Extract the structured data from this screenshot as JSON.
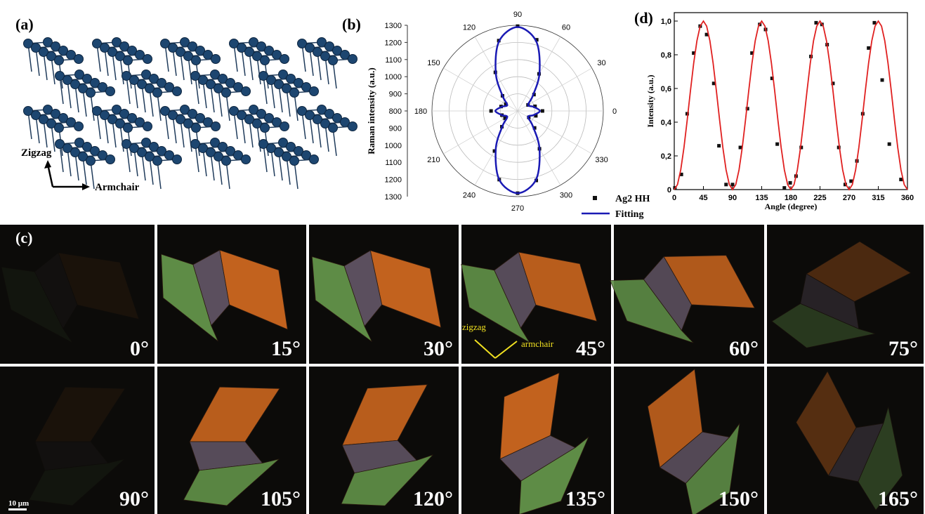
{
  "panel_a": {
    "label": "(a)",
    "zigzag": "Zigzag",
    "armchair": "Armchair"
  },
  "panel_c": {
    "label": "(c)",
    "angles": [
      "0°",
      "15°",
      "30°",
      "45°",
      "60°",
      "75°",
      "90°",
      "105°",
      "120°",
      "135°",
      "150°",
      "165°"
    ],
    "zigzag": "zigzag",
    "armchair": "armchair",
    "scale_bar": "10 μm"
  },
  "chart_data": [
    {
      "type": "polar",
      "panel_label": "(b)",
      "y_label": "Raman intensity (a.u.)",
      "theta": [
        0,
        15,
        30,
        45,
        60,
        75,
        90,
        105,
        120,
        135,
        150,
        165,
        180,
        195,
        210,
        225,
        240,
        255,
        270,
        285,
        300,
        315,
        330,
        345
      ],
      "rlim": [
        800,
        1300
      ],
      "rticks": [
        800,
        900,
        1000,
        1100,
        1200,
        1300
      ],
      "angle_ticks": [
        0,
        30,
        60,
        90,
        120,
        150,
        180,
        210,
        240,
        270,
        300,
        330
      ],
      "series": [
        {
          "name": "Ag2 HH",
          "color": "#111111",
          "mode": "points",
          "values": [
            945,
            905,
            870,
            935,
            1050,
            1230,
            1295,
            1225,
            1060,
            925,
            880,
            900,
            955,
            895,
            885,
            930,
            1070,
            1215,
            1280,
            1220,
            1055,
            940,
            875,
            910
          ]
        },
        {
          "name": "Fitting",
          "color": "#1a1ab4",
          "mode": "curve",
          "values": [
            930,
            895,
            870,
            925,
            1055,
            1220,
            1290,
            1220,
            1055,
            925,
            870,
            895,
            930,
            895,
            870,
            925,
            1055,
            1215,
            1280,
            1215,
            1055,
            925,
            870,
            895
          ]
        }
      ]
    },
    {
      "type": "line",
      "panel_label": "(d)",
      "x_label": "Angle (degree)",
      "y_label": "Intensity (a.u.)",
      "xlim": [
        0,
        360
      ],
      "xticks": [
        0,
        45,
        90,
        135,
        180,
        225,
        270,
        315,
        360
      ],
      "ylim": [
        0,
        1.05
      ],
      "yticks": [
        0,
        {
          "value": 0.2,
          "label": "0,2"
        },
        {
          "value": 0.4,
          "label": "0,4"
        },
        {
          "value": 0.6,
          "label": "0,6"
        },
        {
          "value": 0.8,
          "label": "0,8"
        },
        {
          "value": 1.0,
          "label": "1,0"
        }
      ],
      "series": [
        {
          "mode": "points",
          "color": "#111111",
          "x": [
            1,
            11,
            20,
            30,
            40,
            50,
            61,
            69,
            80,
            90,
            102,
            113,
            120,
            132,
            141,
            151,
            159,
            170,
            179,
            188,
            196,
            211,
            219,
            228,
            236,
            245,
            254,
            264,
            273,
            282,
            291,
            300,
            309,
            321,
            332,
            350
          ],
          "values": [
            0.01,
            0.09,
            0.45,
            0.81,
            0.97,
            0.92,
            0.63,
            0.26,
            0.03,
            0.03,
            0.25,
            0.48,
            0.81,
            0.98,
            0.95,
            0.66,
            0.27,
            0.01,
            0.04,
            0.08,
            0.25,
            0.79,
            0.99,
            0.98,
            0.86,
            0.63,
            0.25,
            0.03,
            0.05,
            0.17,
            0.45,
            0.84,
            0.99,
            0.65,
            0.27,
            0.06
          ]
        },
        {
          "mode": "curve",
          "color": "#e02020",
          "x": [
            0,
            5,
            10,
            15,
            20,
            25,
            30,
            35,
            40,
            45,
            50,
            55,
            60,
            65,
            70,
            75,
            80,
            85,
            90,
            95,
            100,
            105,
            110,
            115,
            120,
            125,
            130,
            135,
            140,
            145,
            150,
            155,
            160,
            165,
            170,
            175,
            180,
            185,
            190,
            195,
            200,
            205,
            210,
            215,
            220,
            225,
            230,
            235,
            240,
            245,
            250,
            255,
            260,
            265,
            270,
            275,
            280,
            285,
            290,
            295,
            300,
            305,
            310,
            315,
            320,
            325,
            330,
            335,
            340,
            345,
            350,
            355,
            360
          ],
          "values": [
            0,
            0.03,
            0.117,
            0.25,
            0.413,
            0.587,
            0.75,
            0.883,
            0.97,
            1,
            0.97,
            0.883,
            0.75,
            0.587,
            0.413,
            0.25,
            0.117,
            0.03,
            0,
            0.03,
            0.117,
            0.25,
            0.413,
            0.587,
            0.75,
            0.883,
            0.97,
            1,
            0.97,
            0.883,
            0.75,
            0.587,
            0.413,
            0.25,
            0.117,
            0.03,
            0,
            0.03,
            0.117,
            0.25,
            0.413,
            0.587,
            0.75,
            0.883,
            0.97,
            1,
            0.97,
            0.883,
            0.75,
            0.587,
            0.413,
            0.25,
            0.117,
            0.03,
            0,
            0.03,
            0.117,
            0.25,
            0.413,
            0.587,
            0.75,
            0.883,
            0.97,
            1,
            0.97,
            0.883,
            0.75,
            0.587,
            0.413,
            0.25,
            0.117,
            0.03,
            0
          ]
        }
      ]
    }
  ]
}
